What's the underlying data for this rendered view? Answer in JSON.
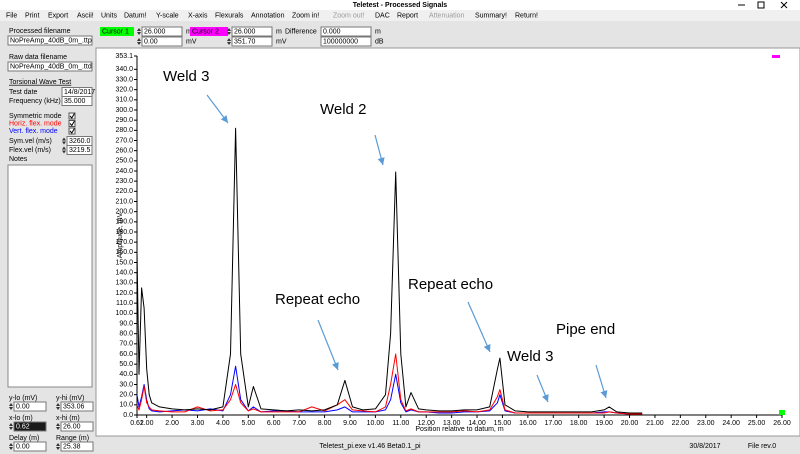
{
  "window": {
    "title": "Teletest - Processed Signals"
  },
  "menu": [
    {
      "label": "File",
      "enabled": true
    },
    {
      "label": "Print",
      "enabled": true
    },
    {
      "label": "Export",
      "enabled": true
    },
    {
      "label": "Ascii!",
      "enabled": true
    },
    {
      "label": "Units",
      "enabled": true
    },
    {
      "label": "Datum!",
      "enabled": true
    },
    {
      "label": "Y-scale",
      "enabled": true
    },
    {
      "label": "X-axis",
      "enabled": true
    },
    {
      "label": "Flexurals",
      "enabled": true
    },
    {
      "label": "Annotation",
      "enabled": true
    },
    {
      "label": "Zoom in!",
      "enabled": true
    },
    {
      "label": "Zoom out!",
      "enabled": false
    },
    {
      "label": "DAC",
      "enabled": true
    },
    {
      "label": "Report",
      "enabled": true
    },
    {
      "label": "Attenuation",
      "enabled": false
    },
    {
      "label": "Summary!",
      "enabled": true
    },
    {
      "label": "Return!",
      "enabled": true
    }
  ],
  "toolbar": {
    "cursor1": {
      "label": "Cursor 1",
      "color": "#00ff00",
      "x": "26.000",
      "x_unit": "m",
      "y": "0.00",
      "y_unit": "mV"
    },
    "cursor2": {
      "label": "Cursor 2",
      "color": "#ff00ff",
      "x": "26.000",
      "x_unit": "m",
      "y": "351.70",
      "y_unit": "mV"
    },
    "difference": {
      "label": "Difference",
      "x": "0.000",
      "x_unit": "m",
      "y": "100000000",
      "y_unit": "dB"
    }
  },
  "left_panel": {
    "processed_filename": {
      "label": "Processed filename",
      "value": "NoPreAmp_40dB_0m_.ttp"
    },
    "raw_filename": {
      "label": "Raw data filename",
      "value": "NoPreAmp_40dB_0m_.ttd"
    },
    "test_type": "Torsional Wave Test",
    "test_date": {
      "label": "Test date",
      "value": "14/8/2017"
    },
    "frequency": {
      "label": "Frequency (kHz)",
      "value": "35.000"
    },
    "modes": [
      {
        "label": "Symmetric mode",
        "color": "#000000",
        "checked": true
      },
      {
        "label": "Horiz. flex. mode",
        "color": "#ff0000",
        "checked": true
      },
      {
        "label": "Vert. flex. mode",
        "color": "#0000ff",
        "checked": true
      }
    ],
    "sym_vel": {
      "label": "Sym.vel (m/s)",
      "value": "3260.0"
    },
    "flex_vel": {
      "label": "Flex.vel (m/s)",
      "value": "3219.5"
    },
    "notes_label": "Notes",
    "limits": [
      {
        "label": "y-lo (mV)",
        "value": "0.00"
      },
      {
        "label": "y-hi (mV)",
        "value": "353.06"
      },
      {
        "label": "x-lo (m)",
        "value": "0.62"
      },
      {
        "label": "x-hi (m)",
        "value": "26.00"
      },
      {
        "label": "Delay (m)",
        "value": "0.00"
      },
      {
        "label": "Range (m)",
        "value": "25.38"
      }
    ]
  },
  "chart_data": {
    "type": "line",
    "xlabel": "Position relative to datum, m",
    "ylabel": "Amplitude, mV",
    "xlim": [
      0.62,
      26
    ],
    "ylim": [
      0,
      353.1
    ],
    "grid": false,
    "xticks": [
      0.62,
      {
        "value": 1,
        "label": "1.00"
      },
      {
        "value": 2,
        "label": "2.00"
      },
      {
        "value": 3,
        "label": "3.00"
      },
      {
        "value": 4,
        "label": "4.00"
      },
      {
        "value": 5,
        "label": "5.00"
      },
      {
        "value": 6,
        "label": "6.00"
      },
      {
        "value": 7,
        "label": "7.00"
      },
      {
        "value": 8,
        "label": "8.00"
      },
      {
        "value": 9,
        "label": "9.00"
      },
      {
        "value": 10,
        "label": "10.00"
      },
      {
        "value": 11,
        "label": "11.00"
      },
      {
        "value": 12,
        "label": "12.00"
      },
      {
        "value": 13,
        "label": "13.00"
      },
      {
        "value": 14,
        "label": "14.00"
      },
      {
        "value": 15,
        "label": "15.00"
      },
      {
        "value": 16,
        "label": "16.00"
      },
      {
        "value": 17,
        "label": "17.00"
      },
      {
        "value": 18,
        "label": "18.00"
      },
      {
        "value": 19,
        "label": "19.00"
      },
      {
        "value": 20,
        "label": "20.00"
      },
      {
        "value": 21,
        "label": "21.00"
      },
      {
        "value": 22,
        "label": "22.00"
      },
      {
        "value": 23,
        "label": "23.00"
      },
      {
        "value": 24,
        "label": "24.00"
      },
      {
        "value": 25,
        "label": "25.00"
      },
      {
        "value": 26,
        "label": "26.00"
      }
    ],
    "yticks": [
      {
        "value": 0,
        "label": "0.0"
      },
      {
        "value": 10,
        "label": "10.0"
      },
      {
        "value": 20,
        "label": "20.0"
      },
      {
        "value": 30,
        "label": "30.0"
      },
      {
        "value": 40,
        "label": "40.0"
      },
      {
        "value": 50,
        "label": "50.0"
      },
      {
        "value": 60,
        "label": "60.0"
      },
      {
        "value": 70,
        "label": "70.0"
      },
      {
        "value": 80,
        "label": "80.0"
      },
      {
        "value": 90,
        "label": "90.0"
      },
      {
        "value": 100,
        "label": "100.0"
      },
      {
        "value": 110,
        "label": "110.0"
      },
      {
        "value": 120,
        "label": "120.0"
      },
      {
        "value": 130,
        "label": "130.0"
      },
      {
        "value": 140,
        "label": "140.0"
      },
      {
        "value": 150,
        "label": "150.0"
      },
      {
        "value": 160,
        "label": "160.0"
      },
      {
        "value": 170,
        "label": "170.0"
      },
      {
        "value": 180,
        "label": "180.0"
      },
      {
        "value": 190,
        "label": "190.0"
      },
      {
        "value": 200,
        "label": "200.0"
      },
      {
        "value": 210,
        "label": "210.0"
      },
      {
        "value": 220,
        "label": "220.0"
      },
      {
        "value": 230,
        "label": "230.0"
      },
      {
        "value": 240,
        "label": "240.0"
      },
      {
        "value": 250,
        "label": "250.0"
      },
      {
        "value": 260,
        "label": "260.0"
      },
      {
        "value": 270,
        "label": "270.0"
      },
      {
        "value": 280,
        "label": "280.0"
      },
      {
        "value": 290,
        "label": "290.0"
      },
      {
        "value": 300,
        "label": "300.0"
      },
      {
        "value": 310,
        "label": "310.0"
      },
      {
        "value": 320,
        "label": "320.0"
      },
      {
        "value": 330,
        "label": "330.0"
      },
      {
        "value": 340,
        "label": "340.0"
      },
      353.1
    ],
    "x": [
      0.62,
      0.7,
      0.8,
      0.9,
      1.0,
      1.1,
      1.2,
      1.5,
      2.0,
      2.5,
      3.0,
      3.5,
      4.0,
      4.3,
      4.5,
      4.7,
      5.0,
      5.2,
      5.5,
      6.0,
      6.5,
      7.0,
      7.5,
      8.0,
      8.5,
      8.8,
      9.1,
      9.5,
      10.0,
      10.4,
      10.6,
      10.8,
      11.0,
      11.2,
      11.4,
      11.7,
      12.0,
      12.5,
      13.0,
      13.5,
      14.0,
      14.5,
      14.8,
      14.9,
      15.1,
      15.5,
      16.0,
      16.5,
      17.0,
      17.5,
      18.0,
      18.5,
      19.0,
      19.2,
      19.5,
      20.0,
      20.5
    ],
    "series": [
      {
        "color": "#000000",
        "values": [
          160,
          40,
          125,
          105,
          45,
          20,
          12,
          8,
          6,
          5,
          6,
          5,
          8,
          60,
          282,
          60,
          8,
          28,
          6,
          5,
          4,
          5,
          4,
          5,
          10,
          34,
          8,
          5,
          6,
          20,
          80,
          239,
          60,
          8,
          22,
          6,
          5,
          4,
          4,
          5,
          5,
          8,
          45,
          56,
          10,
          4,
          3,
          3,
          3,
          3,
          3,
          3,
          5,
          8,
          3,
          2,
          2
        ]
      },
      {
        "color": "#ff0000",
        "values": [
          10,
          5,
          15,
          28,
          12,
          8,
          5,
          4,
          3,
          3,
          8,
          4,
          5,
          15,
          30,
          12,
          4,
          6,
          3,
          3,
          3,
          3,
          8,
          4,
          10,
          15,
          5,
          4,
          3,
          8,
          30,
          60,
          15,
          4,
          6,
          3,
          3,
          3,
          3,
          4,
          3,
          5,
          18,
          25,
          5,
          2,
          2,
          2,
          2,
          2,
          2,
          2,
          2,
          3,
          2,
          1,
          1
        ]
      },
      {
        "color": "#0000ff",
        "values": [
          20,
          8,
          18,
          30,
          15,
          6,
          4,
          3,
          4,
          5,
          4,
          6,
          4,
          20,
          48,
          15,
          4,
          8,
          3,
          4,
          4,
          3,
          3,
          3,
          5,
          8,
          3,
          3,
          3,
          5,
          15,
          40,
          12,
          3,
          5,
          3,
          3,
          2,
          2,
          3,
          3,
          4,
          12,
          20,
          4,
          2,
          2,
          2,
          2,
          2,
          2,
          2,
          3,
          3,
          2,
          1,
          1
        ]
      }
    ],
    "annotations": [
      "Weld 3",
      "Weld 2",
      "Repeat echo",
      "Repeat echo",
      "Weld 3",
      "Pipe end"
    ]
  },
  "status_bar": {
    "program": "Teletest_pi.exe v1.46 Beta0.1_pi",
    "date": "30/8/2017",
    "file_rev": "File rev.0"
  }
}
